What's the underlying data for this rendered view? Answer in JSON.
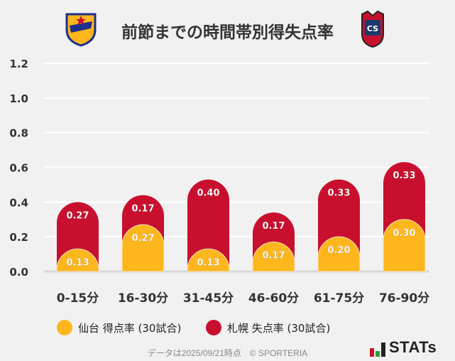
{
  "title": "前節までの時間帯別得失点率",
  "logos": {
    "left": "VEGALTA",
    "right": "CS CONSADOLE SAPPORO"
  },
  "chart_data": {
    "type": "bar",
    "stacked": true,
    "categories": [
      "0-15分",
      "16-30分",
      "31-45分",
      "46-60分",
      "61-75分",
      "76-90分"
    ],
    "series": [
      {
        "name": "仙台 得点率 (30試合)",
        "color": "#fdb71d",
        "values": [
          0.13,
          0.27,
          0.13,
          0.17,
          0.2,
          0.3
        ]
      },
      {
        "name": "札幌 失点率 (30試合)",
        "color": "#c8102e",
        "values": [
          0.27,
          0.17,
          0.4,
          0.17,
          0.33,
          0.33
        ]
      }
    ],
    "yticks": [
      "0.0",
      "0.2",
      "0.4",
      "0.6",
      "0.8",
      "1.0",
      "1.2"
    ],
    "ylim": [
      0,
      1.2
    ],
    "grid": true,
    "legend": "bottom"
  },
  "footer": "データは2025/09/21時点　© SPORTERIA",
  "brand": "STATs"
}
